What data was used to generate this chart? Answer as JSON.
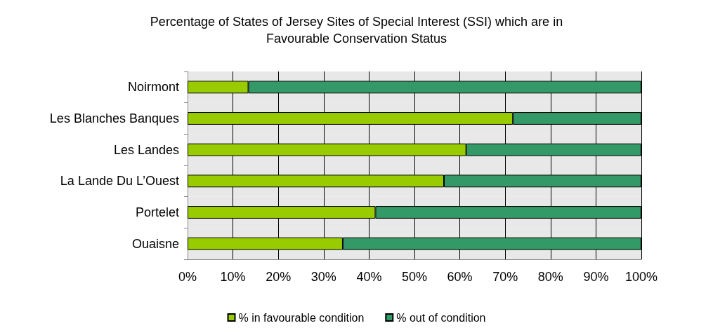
{
  "chart_data": {
    "type": "bar",
    "title": "Percentage of States of Jersey Sites of Special Interest (SSI) which are in\nFavourable Conservation Status",
    "orientation": "horizontal",
    "stacked": true,
    "categories": [
      "Noirmont",
      "Les Blanches Banques",
      "Les Landes",
      "La Lande Du L’Ouest",
      "Portelet",
      "Ouaisne"
    ],
    "series": [
      {
        "name": "% in favourable condition",
        "color": "#99cc00",
        "values": [
          13.4,
          71.7,
          61.4,
          56.5,
          41.4,
          34.2
        ]
      },
      {
        "name": "% out of condition",
        "color": "#339966",
        "values": [
          86.6,
          28.3,
          38.6,
          43.5,
          58.6,
          65.8
        ]
      }
    ],
    "xlim": [
      0,
      100
    ],
    "xticks": [
      {
        "value": 0,
        "label": "0%"
      },
      {
        "value": 10,
        "label": "10%"
      },
      {
        "value": 20,
        "label": "20%"
      },
      {
        "value": 30,
        "label": "30%"
      },
      {
        "value": 40,
        "label": "40%"
      },
      {
        "value": 50,
        "label": "50%"
      },
      {
        "value": 60,
        "label": "60%"
      },
      {
        "value": 70,
        "label": "70%"
      },
      {
        "value": 80,
        "label": "80%"
      },
      {
        "value": 90,
        "label": "90%"
      },
      {
        "value": 100,
        "label": "100%"
      }
    ],
    "grid": "x",
    "legend": "bottom"
  }
}
